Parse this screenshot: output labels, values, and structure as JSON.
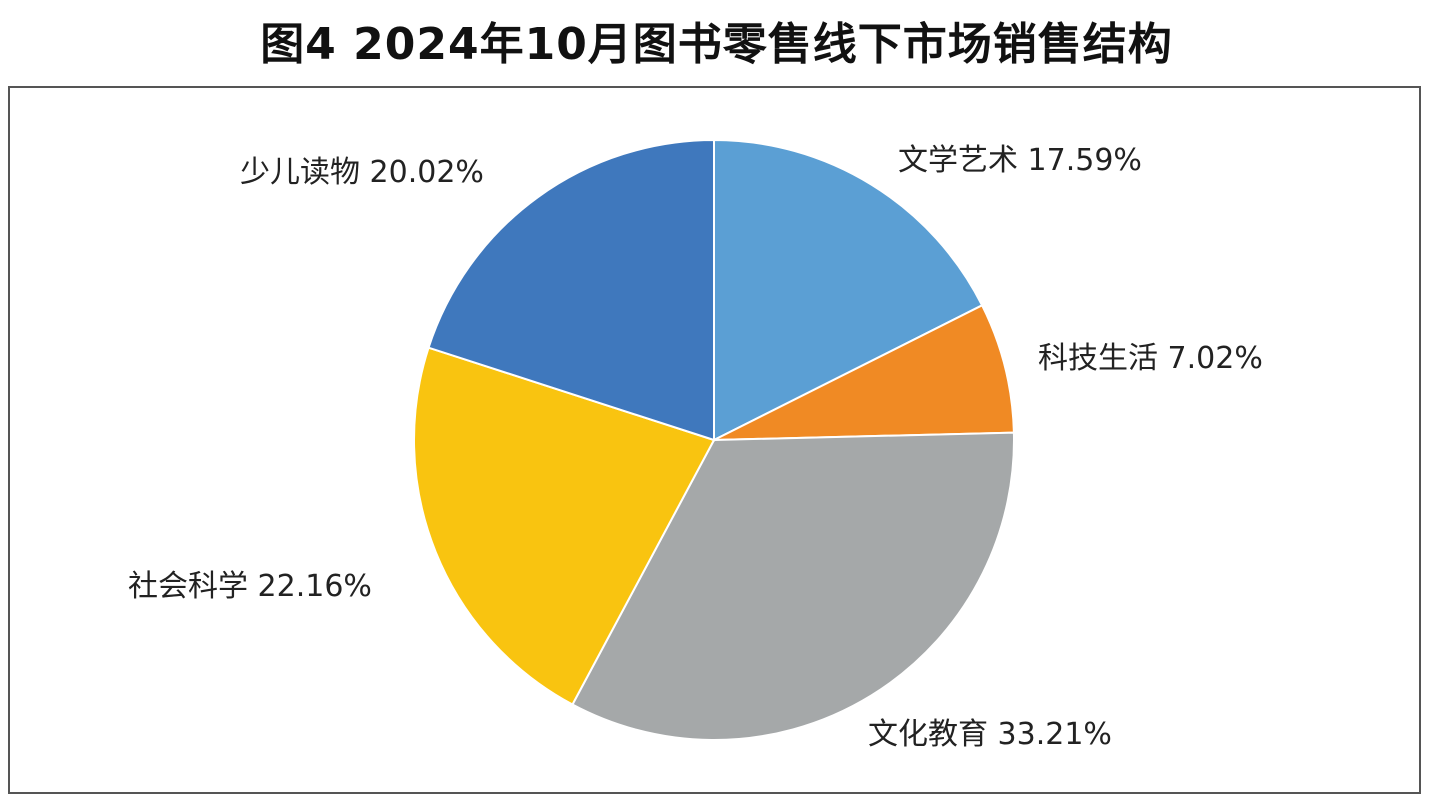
{
  "title": "图4  2024年10月图书零售线下市场销售结构",
  "chart_data": {
    "type": "pie",
    "title": "图4  2024年10月图书零售线下市场销售结构",
    "categories": [
      "文学艺术",
      "科技生活",
      "文化教育",
      "社会科学",
      "少儿读物"
    ],
    "values": [
      17.59,
      7.02,
      33.21,
      22.16,
      20.02
    ],
    "labels": [
      "文学艺术 17.59%",
      "科技生活 7.02%",
      "文化教育 33.21%",
      "社会科学 22.16%",
      "少儿读物 20.02%"
    ],
    "colors": [
      "#5b9fd4",
      "#f08a24",
      "#a5a8a9",
      "#f9c410",
      "#3f78bd"
    ],
    "start_angle": "12 o'clock",
    "direction": "clockwise",
    "legend": "none"
  }
}
